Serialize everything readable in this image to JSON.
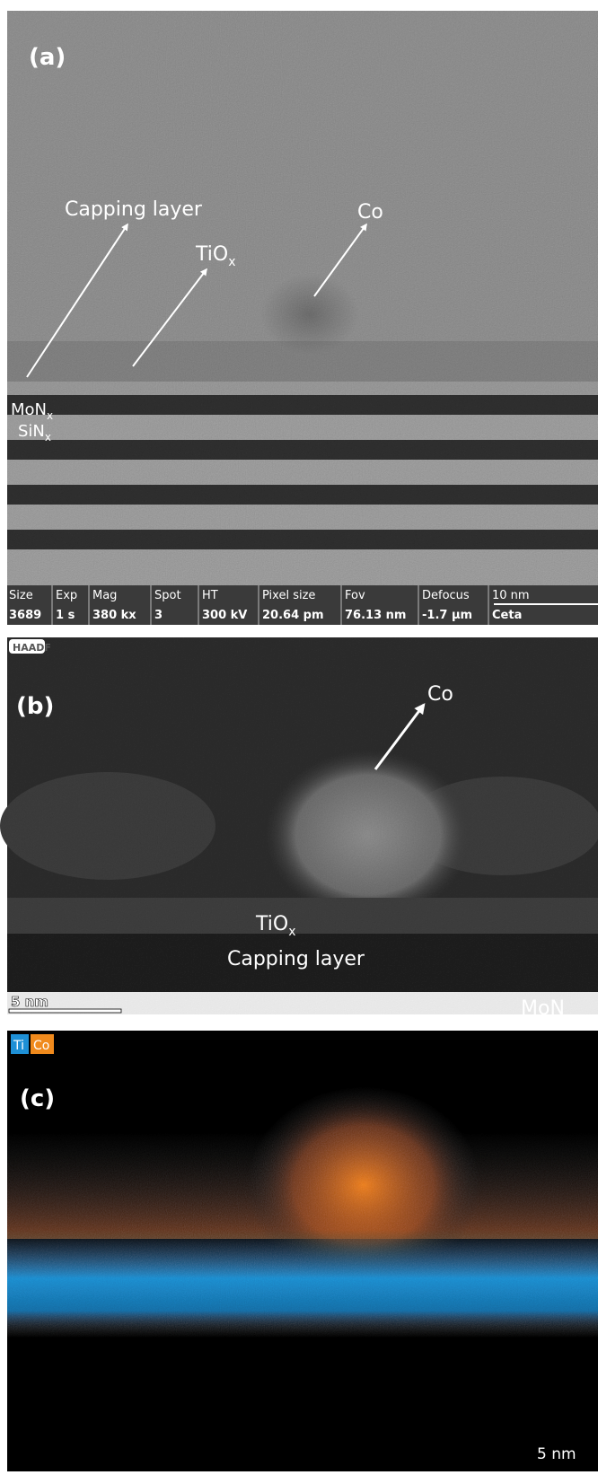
{
  "panel_a": {
    "label": "(a)",
    "annotations": {
      "capping": "Capping layer",
      "tiox": {
        "base": "TiO",
        "sub": "x"
      },
      "co": "Co",
      "monx": {
        "base": "MoN",
        "sub": "x"
      },
      "sinx": {
        "base": "SiN",
        "sub": "x"
      }
    },
    "info_bar": [
      [
        "Size",
        "3689"
      ],
      [
        "Exp",
        "1 s"
      ],
      [
        "Mag",
        "380 kx"
      ],
      [
        "Spot",
        "3"
      ],
      [
        "HT",
        "300 kV"
      ],
      [
        "Pixel size",
        "20.64 pm"
      ],
      [
        "Fov",
        "76.13 nm"
      ],
      [
        "Defocus",
        "-1.7 µm"
      ],
      [
        "10 nm",
        "Ceta"
      ]
    ]
  },
  "panel_b": {
    "badge": "HAADF",
    "label": "(b)",
    "co": "Co",
    "tiox": {
      "base": "TiO",
      "sub": "x"
    },
    "capping": "Capping layer",
    "scale": "5 nm",
    "monx": "MoN"
  },
  "panel_c": {
    "badges": [
      "Ti",
      "Co"
    ],
    "label": "(c)",
    "scale": "5 nm"
  }
}
